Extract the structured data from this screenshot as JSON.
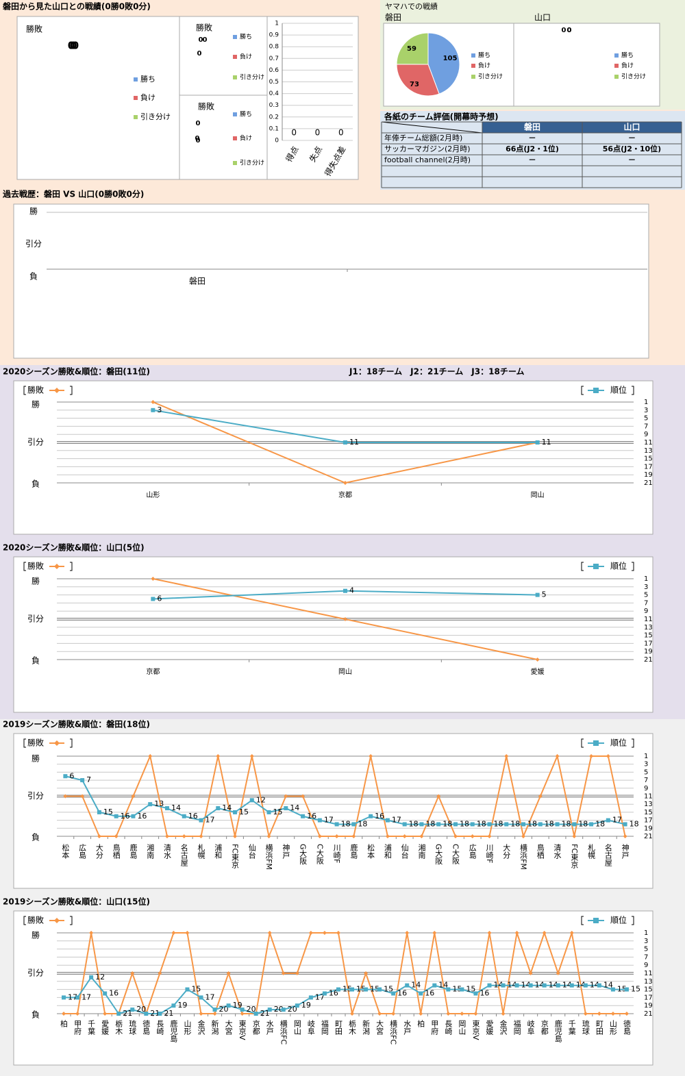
{
  "record": {
    "title": "磐田から見た山口との戦績(0勝0敗0分)",
    "charts": [
      {
        "type": "pie",
        "title": "勝敗",
        "categories": [
          "勝ち",
          "負け",
          "引き分け"
        ],
        "colors": [
          "#6f9fe0",
          "#e06666",
          "#a9d16a"
        ],
        "values": [
          0,
          0,
          0
        ]
      },
      {
        "type": "pie",
        "title": "勝敗",
        "categories": [
          "勝ち",
          "負け",
          "引き分け"
        ],
        "colors": [
          "#6f9fe0",
          "#e06666",
          "#a9d16a"
        ],
        "values": [
          0,
          0,
          0
        ]
      },
      {
        "type": "pie",
        "title": "勝敗",
        "categories": [
          "勝ち",
          "負け",
          "引き分け"
        ],
        "colors": [
          "#6f9fe0",
          "#e06666",
          "#a9d16a"
        ],
        "values": [
          0,
          0,
          0
        ]
      },
      {
        "type": "bar",
        "categories": [
          "得点",
          "失点",
          "得失点差"
        ],
        "values": [
          0,
          0,
          0
        ],
        "ylim": [
          0,
          1
        ],
        "yticks": [
          0,
          0.1,
          0.2,
          0.3,
          0.4,
          0.5,
          0.6,
          0.7,
          0.8,
          0.9,
          1
        ],
        "grid": true
      }
    ]
  },
  "yamaha": {
    "title": "ヤマハでの戦績",
    "charts": [
      {
        "type": "pie",
        "title": "磐田",
        "categories": [
          "勝ち",
          "負け",
          "引き分け"
        ],
        "colors": [
          "#6f9fe0",
          "#e06666",
          "#a9d16a"
        ],
        "values": [
          105,
          73,
          59
        ]
      },
      {
        "type": "pie",
        "title": "山口",
        "categories": [
          "勝ち",
          "負け",
          "引き分け"
        ],
        "colors": [
          "#6f9fe0",
          "#e06666",
          "#a9d16a"
        ],
        "values": [
          0,
          0,
          0
        ]
      }
    ]
  },
  "ratings": {
    "title": "各紙のチーム評価(開幕時予想)",
    "columns": [
      "磐田",
      "山口"
    ],
    "rows": [
      {
        "label": "年俸チーム総額(2月時)",
        "values": [
          "－",
          "－"
        ]
      },
      {
        "label": "サッカーマガジン(2月時)",
        "values": [
          "66点(J2・1位)",
          "56点(J2・10位)"
        ]
      },
      {
        "label": "football channel(2月時)",
        "values": [
          "－",
          "－"
        ]
      }
    ]
  },
  "history": {
    "title": "過去戦歴：磐田 VS 山口(0勝0敗0分)",
    "ycategories": [
      "勝",
      "引分",
      "負"
    ],
    "categories": [
      "磐田"
    ]
  },
  "season_note": "J1：18チーム　J2：21チーム　J3：18チーム",
  "seasons": [
    {
      "title": "2020シーズン勝敗&順位：磐田(11位)",
      "type": "line",
      "categories": [
        "山形",
        "京都",
        "岡山"
      ],
      "ycategories": [
        "勝",
        "引分",
        "負"
      ],
      "series": [
        {
          "name": "勝敗",
          "color": "#f79646",
          "values": [
            "勝",
            "負",
            "引分"
          ]
        },
        {
          "name": "順位",
          "color": "#4bacc6",
          "axis": "y2",
          "values": [
            3,
            11,
            11
          ]
        }
      ],
      "y2lim": [
        1,
        21
      ],
      "y2ticks": [
        1,
        3,
        5,
        7,
        9,
        11,
        13,
        15,
        17,
        19,
        21
      ]
    },
    {
      "title": "2020シーズン勝敗&順位：山口(5位)",
      "type": "line",
      "categories": [
        "京都",
        "岡山",
        "愛媛"
      ],
      "ycategories": [
        "勝",
        "引分",
        "負"
      ],
      "series": [
        {
          "name": "勝敗",
          "color": "#f79646",
          "values": [
            "勝",
            "引分",
            "負"
          ]
        },
        {
          "name": "順位",
          "color": "#4bacc6",
          "axis": "y2",
          "values": [
            6,
            4,
            5
          ]
        }
      ],
      "y2lim": [
        1,
        21
      ],
      "y2ticks": [
        1,
        3,
        5,
        7,
        9,
        11,
        13,
        15,
        17,
        19,
        21
      ]
    },
    {
      "title": "2019シーズン勝敗&順位：磐田(18位)",
      "type": "line",
      "categories": [
        "松本",
        "広島",
        "大分",
        "鳥栖",
        "鹿島",
        "湘南",
        "清水",
        "名古屋",
        "札幌",
        "浦和",
        "FC東京",
        "仙台",
        "横浜FM",
        "神戸",
        "G大阪",
        "C大阪",
        "川崎F",
        "鹿島",
        "松本",
        "浦和",
        "仙台",
        "湘南",
        "G大阪",
        "C大阪",
        "広島",
        "川崎F",
        "大分",
        "横浜FM",
        "鳥栖",
        "清水",
        "FC東京",
        "札幌",
        "名古屋",
        "神戸"
      ],
      "ycategories": [
        "勝",
        "引分",
        "負"
      ],
      "series": [
        {
          "name": "勝敗",
          "color": "#f79646",
          "values": [
            "引分",
            "引分",
            "負",
            "負",
            "引分",
            "勝",
            "負",
            "負",
            "負",
            "勝",
            "負",
            "勝",
            "負",
            "引分",
            "引分",
            "負",
            "負",
            "負",
            "勝",
            "負",
            "負",
            "負",
            "引分",
            "負",
            "負",
            "負",
            "勝",
            "負",
            "引分",
            "勝",
            "負",
            "勝",
            "勝",
            "負"
          ]
        },
        {
          "name": "順位",
          "color": "#4bacc6",
          "axis": "y2",
          "values": [
            6,
            7,
            15,
            16,
            16,
            13,
            14,
            16,
            17,
            14,
            15,
            12,
            15,
            14,
            16,
            17,
            18,
            18,
            16,
            17,
            18,
            18,
            18,
            18,
            18,
            18,
            18,
            18,
            18,
            18,
            18,
            18,
            17,
            18
          ]
        }
      ],
      "y2lim": [
        1,
        21
      ],
      "y2ticks": [
        1,
        3,
        5,
        7,
        9,
        11,
        13,
        15,
        17,
        19,
        21
      ]
    },
    {
      "title": "2019シーズン勝敗&順位：山口(15位)",
      "type": "line",
      "categories": [
        "柏",
        "甲府",
        "千葉",
        "愛媛",
        "栃木",
        "琉球",
        "徳島",
        "長崎",
        "鹿児島",
        "山形",
        "金沢",
        "新潟",
        "大宮",
        "東京V",
        "京都",
        "水戸",
        "横浜FC",
        "岡山",
        "岐阜",
        "福岡",
        "町田",
        "栃木",
        "新潟",
        "大宮",
        "横浜FC",
        "水戸",
        "柏",
        "甲府",
        "長崎",
        "岡山",
        "東京V",
        "愛媛",
        "金沢",
        "福岡",
        "岐阜",
        "京都",
        "鹿児島",
        "千葉",
        "琉球",
        "町田",
        "山形",
        "徳島"
      ],
      "ycategories": [
        "勝",
        "引分",
        "負"
      ],
      "series": [
        {
          "name": "勝敗",
          "color": "#f79646",
          "values": [
            "負",
            "負",
            "勝",
            "負",
            "負",
            "引分",
            "負",
            "引分",
            "勝",
            "勝",
            "負",
            "負",
            "引分",
            "負",
            "負",
            "勝",
            "引分",
            "引分",
            "勝",
            "勝",
            "勝",
            "負",
            "引分",
            "負",
            "負",
            "勝",
            "負",
            "勝",
            "負",
            "負",
            "負",
            "勝",
            "負",
            "勝",
            "引分",
            "勝",
            "引分",
            "勝",
            "負",
            "負",
            "負",
            "負"
          ]
        },
        {
          "name": "順位",
          "color": "#4bacc6",
          "axis": "y2",
          "values": [
            17,
            17,
            12,
            16,
            21,
            20,
            21,
            21,
            19,
            15,
            17,
            20,
            19,
            20,
            21,
            20,
            20,
            19,
            17,
            16,
            15,
            15,
            15,
            15,
            16,
            14,
            16,
            14,
            15,
            15,
            16,
            14,
            14,
            14,
            14,
            14,
            14,
            14,
            14,
            14,
            15,
            15
          ]
        }
      ],
      "y2lim": [
        1,
        21
      ],
      "y2ticks": [
        1,
        3,
        5,
        7,
        9,
        11,
        13,
        15,
        17,
        19,
        21
      ]
    }
  ]
}
